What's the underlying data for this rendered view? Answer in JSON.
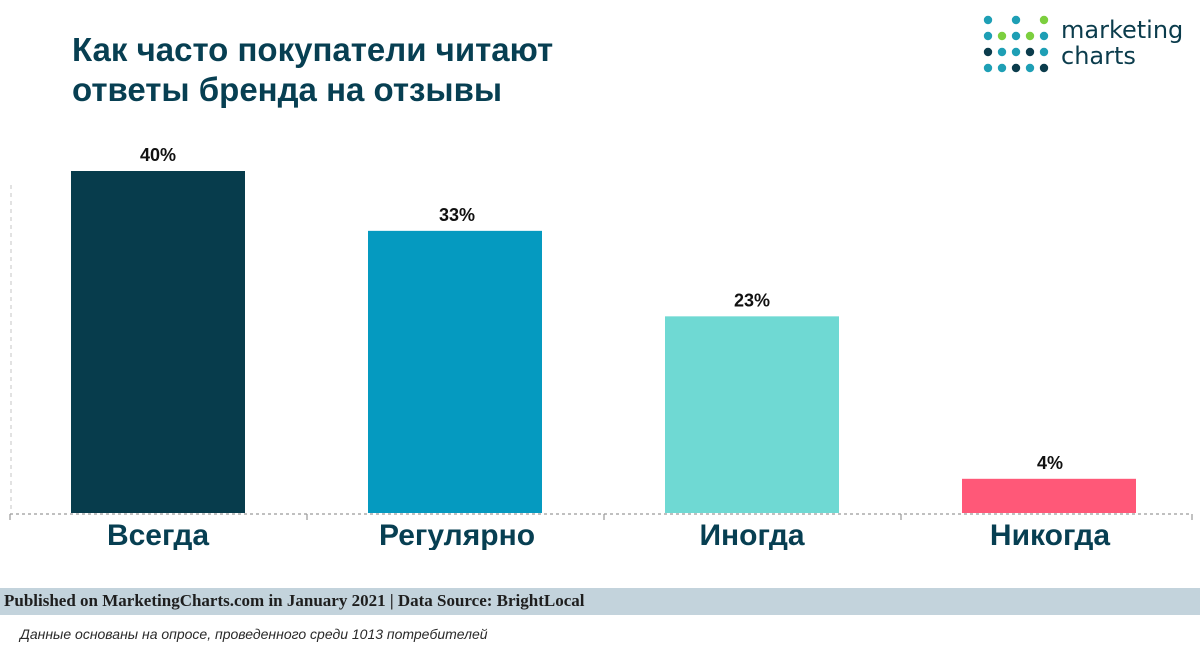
{
  "title": {
    "line1": "Как часто покупатели читают",
    "line2": "ответы бренда на отзывы"
  },
  "logo": {
    "line1": "marketing",
    "line2": "charts",
    "dot_colors": [
      "#1e9fb5",
      "#7ccf3e",
      "#0b3c4c"
    ]
  },
  "chart_data": {
    "type": "bar",
    "title": "Как часто покупатели читают ответы бренда на отзывы",
    "categories": [
      "Всегда",
      "Регулярно",
      "Иногда",
      "Никогда"
    ],
    "values": [
      40,
      33,
      23,
      4
    ],
    "data_labels": [
      "40%",
      "33%",
      "23%",
      "4%"
    ],
    "colors": [
      "#073c4c",
      "#059ac0",
      "#6fd9d3",
      "#ff5878"
    ],
    "xlabel": "",
    "ylabel": "",
    "ylim": [
      0,
      40
    ],
    "grid": false,
    "legend": "none"
  },
  "footer": {
    "published": "Published on MarketingCharts.com in January 2021 | Data Source: BrightLocal",
    "note": "Данные основаны на опросе, проведенного среди 1013 потребителей"
  }
}
